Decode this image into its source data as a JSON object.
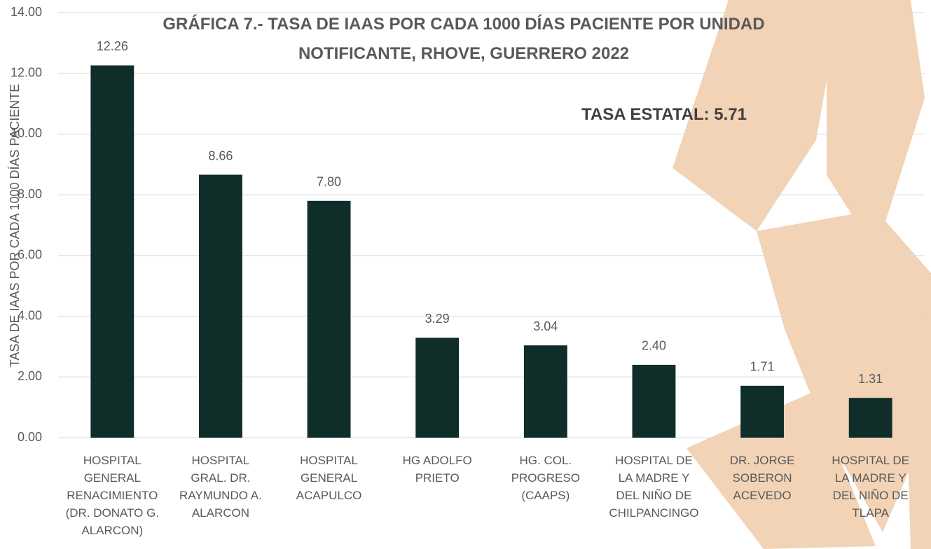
{
  "chart_data": {
    "type": "bar",
    "title": "GRÁFICA 7.- TASA DE IAAS POR CADA 1000 DÍAS PACIENTE POR UNIDAD NOTIFICANTE, RHOVE, GUERRERO 2022",
    "y_label": "TASA DE IAAS POR CADA 1000 DÍAS PACIENTE",
    "annotation": "TASA ESTATAL: 5.71",
    "categories": [
      "HOSPITAL GENERAL RENACIMIENTO (DR. DONATO G. ALARCON)",
      "HOSPITAL GRAL. DR. RAYMUNDO A. ALARCON",
      "HOSPITAL GENERAL ACAPULCO",
      "HG ADOLFO PRIETO",
      "HG. COL. PROGRESO (CAAPS)",
      "HOSPITAL DE LA MADRE Y DEL NIÑO DE CHILPANCINGO",
      "DR. JORGE SOBERON ACEVEDO",
      "HOSPITAL DE LA MADRE Y DEL NIÑO DE TLAPA"
    ],
    "values": [
      12.26,
      8.66,
      7.8,
      3.29,
      3.04,
      2.4,
      1.71,
      1.31
    ],
    "value_labels": [
      "12.26",
      "8.66",
      "7.80",
      "3.29",
      "3.04",
      "2.40",
      "1.71",
      "1.31"
    ],
    "color": "#0f2e2a",
    "ylim": [
      0,
      14
    ],
    "yticks": [
      {
        "value": 0,
        "label": "0.00"
      },
      {
        "value": 2,
        "label": "2.00"
      },
      {
        "value": 4,
        "label": "4.00"
      },
      {
        "value": 6,
        "label": "6.00"
      },
      {
        "value": 8,
        "label": "8.00"
      },
      {
        "value": 10,
        "label": "10.00"
      },
      {
        "value": 12,
        "label": "12.00"
      },
      {
        "value": 14,
        "label": "14.00"
      }
    ],
    "grid": true
  }
}
